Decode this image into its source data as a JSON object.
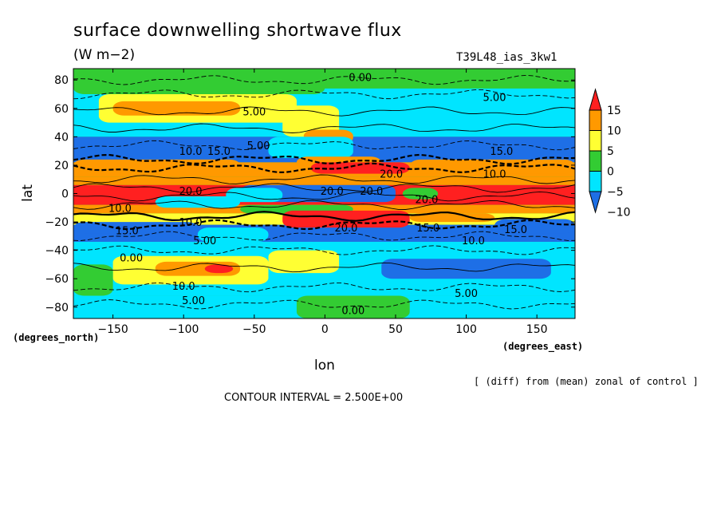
{
  "chart_data": {
    "type": "heatmap",
    "title": "surface downwelling shortwave flux",
    "units": "(W m−2)",
    "run_label": "T39L48_ias_3kw1",
    "xlabel": "lon",
    "ylabel": "lat",
    "x_units": "(degrees_east)",
    "y_units": "(degrees_north)",
    "xlim": [
      -178,
      177
    ],
    "ylim": [
      -88,
      88
    ],
    "x_ticks": [
      -150,
      -100,
      -50,
      0,
      50,
      100,
      150
    ],
    "x_tick_labels": [
      "−150",
      "−100",
      "−50",
      "0",
      "50",
      "100",
      "150"
    ],
    "y_ticks": [
      80,
      60,
      40,
      20,
      0,
      -20,
      -40,
      -60,
      -80
    ],
    "y_tick_labels": [
      "80",
      "60",
      "40",
      "20",
      "0",
      "−20",
      "−40",
      "−60",
      "−80"
    ],
    "colorbar": {
      "levels": [
        -10,
        -5,
        0,
        5,
        10,
        15
      ],
      "level_labels": [
        "−10",
        "−5",
        "0",
        "5",
        "10",
        "15"
      ],
      "colors": [
        "#1e6fe6",
        "#00e5ff",
        "#33cc33",
        "#ffff33",
        "#ff9900",
        "#ff2020",
        "#ff2020"
      ]
    },
    "contour_interval_label": "CONTOUR INTERVAL = 2.500E+00",
    "note": "[ (diff) from (mean) zonal of control ]",
    "contour_labels": [
      {
        "text": "0.00",
        "lon": 25,
        "lat": 82
      },
      {
        "text": "5.00",
        "lon": 120,
        "lat": 68
      },
      {
        "text": "5.00",
        "lon": -50,
        "lat": 58
      },
      {
        "text": "5.00",
        "lon": -47,
        "lat": 34
      },
      {
        "text": "10.0",
        "lon": -95,
        "lat": 30
      },
      {
        "text": "15.0",
        "lon": -75,
        "lat": 30
      },
      {
        "text": "20.0",
        "lon": 47,
        "lat": 14
      },
      {
        "text": "10.0",
        "lon": 120,
        "lat": 14
      },
      {
        "text": "15.0",
        "lon": 125,
        "lat": 30
      },
      {
        "text": "20.0",
        "lon": -95,
        "lat": 2
      },
      {
        "text": "20.0",
        "lon": 5,
        "lat": 2
      },
      {
        "text": "20.0",
        "lon": 33,
        "lat": 2
      },
      {
        "text": "20.0",
        "lon": 72,
        "lat": -4
      },
      {
        "text": "10.0",
        "lon": -145,
        "lat": -10
      },
      {
        "text": "10.0",
        "lon": -95,
        "lat": -20
      },
      {
        "text": "15.0",
        "lon": -140,
        "lat": -26
      },
      {
        "text": "20.0",
        "lon": 15,
        "lat": -24
      },
      {
        "text": "15.0",
        "lon": 73,
        "lat": -24
      },
      {
        "text": "15.0",
        "lon": 135,
        "lat": -25
      },
      {
        "text": "10.0",
        "lon": 105,
        "lat": -33
      },
      {
        "text": "5.00",
        "lon": -85,
        "lat": -33
      },
      {
        "text": "0.00",
        "lon": -137,
        "lat": -45
      },
      {
        "text": "10.0",
        "lon": -100,
        "lat": -65
      },
      {
        "text": "5.00",
        "lon": -93,
        "lat": -75
      },
      {
        "text": "5.00",
        "lon": 100,
        "lat": -70
      },
      {
        "text": "0.00",
        "lon": 20,
        "lat": -82
      }
    ]
  }
}
